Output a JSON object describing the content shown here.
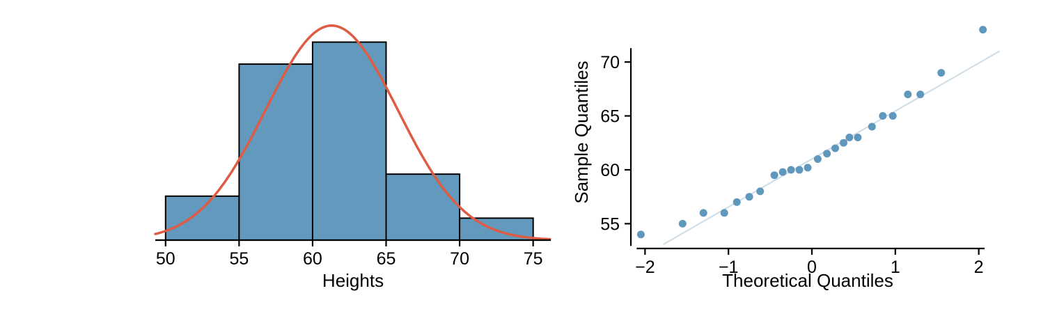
{
  "figure": {
    "background": "#ffffff",
    "text_color": "#000000"
  },
  "chart_data": [
    {
      "type": "bar",
      "subtype": "histogram",
      "title": "",
      "xlabel": "Heights",
      "ylabel": "",
      "bin_edges": [
        50,
        55,
        60,
        65,
        70,
        75
      ],
      "counts": [
        2,
        8,
        9,
        3,
        1
      ],
      "x_ticks": [
        50,
        55,
        60,
        65,
        70,
        75
      ],
      "xlim": [
        49.3,
        76.2
      ],
      "ylim": [
        0,
        9.9
      ],
      "grid": false,
      "legend": false,
      "bar_fill": "#6399bd",
      "bar_stroke": "#000000",
      "axis_color": "#000000",
      "overlay_curve": {
        "type": "normal-density",
        "mean": 61.3,
        "sd": 4.5,
        "peak_value": 9.75,
        "color": "#dd5c43"
      }
    },
    {
      "type": "scatter",
      "subtype": "normal-qq-plot",
      "title": "",
      "xlabel": "Theoretical Quantiles",
      "ylabel": "Sample Quantiles",
      "x_ticks": [
        -2,
        -1,
        0,
        1,
        2
      ],
      "y_ticks": [
        55,
        60,
        65,
        70
      ],
      "xlim": [
        -2.17,
        2.07
      ],
      "ylim": [
        52.7,
        73.3
      ],
      "grid": false,
      "legend": false,
      "point_color": "#5f97bd",
      "axis_color": "#000000",
      "reference_line": {
        "slope": 4.45,
        "intercept": 61.0,
        "x_start": -1.78,
        "x_end": 2.25,
        "color": "#ccdce6"
      },
      "points": [
        [
          -2.05,
          54.0
        ],
        [
          -1.55,
          55.0
        ],
        [
          -1.3,
          56.0
        ],
        [
          -1.05,
          56.0
        ],
        [
          -0.9,
          57.0
        ],
        [
          -0.75,
          57.5
        ],
        [
          -0.62,
          58.0
        ],
        [
          -0.45,
          59.5
        ],
        [
          -0.35,
          59.8
        ],
        [
          -0.25,
          60.0
        ],
        [
          -0.15,
          60.0
        ],
        [
          -0.05,
          60.2
        ],
        [
          0.07,
          61.0
        ],
        [
          0.18,
          61.5
        ],
        [
          0.28,
          62.0
        ],
        [
          0.38,
          62.5
        ],
        [
          0.45,
          63.0
        ],
        [
          0.55,
          63.0
        ],
        [
          0.72,
          64.0
        ],
        [
          0.85,
          65.0
        ],
        [
          0.97,
          65.0
        ],
        [
          1.15,
          67.0
        ],
        [
          1.3,
          67.0
        ],
        [
          1.55,
          69.0
        ],
        [
          2.05,
          73.0
        ]
      ]
    }
  ]
}
